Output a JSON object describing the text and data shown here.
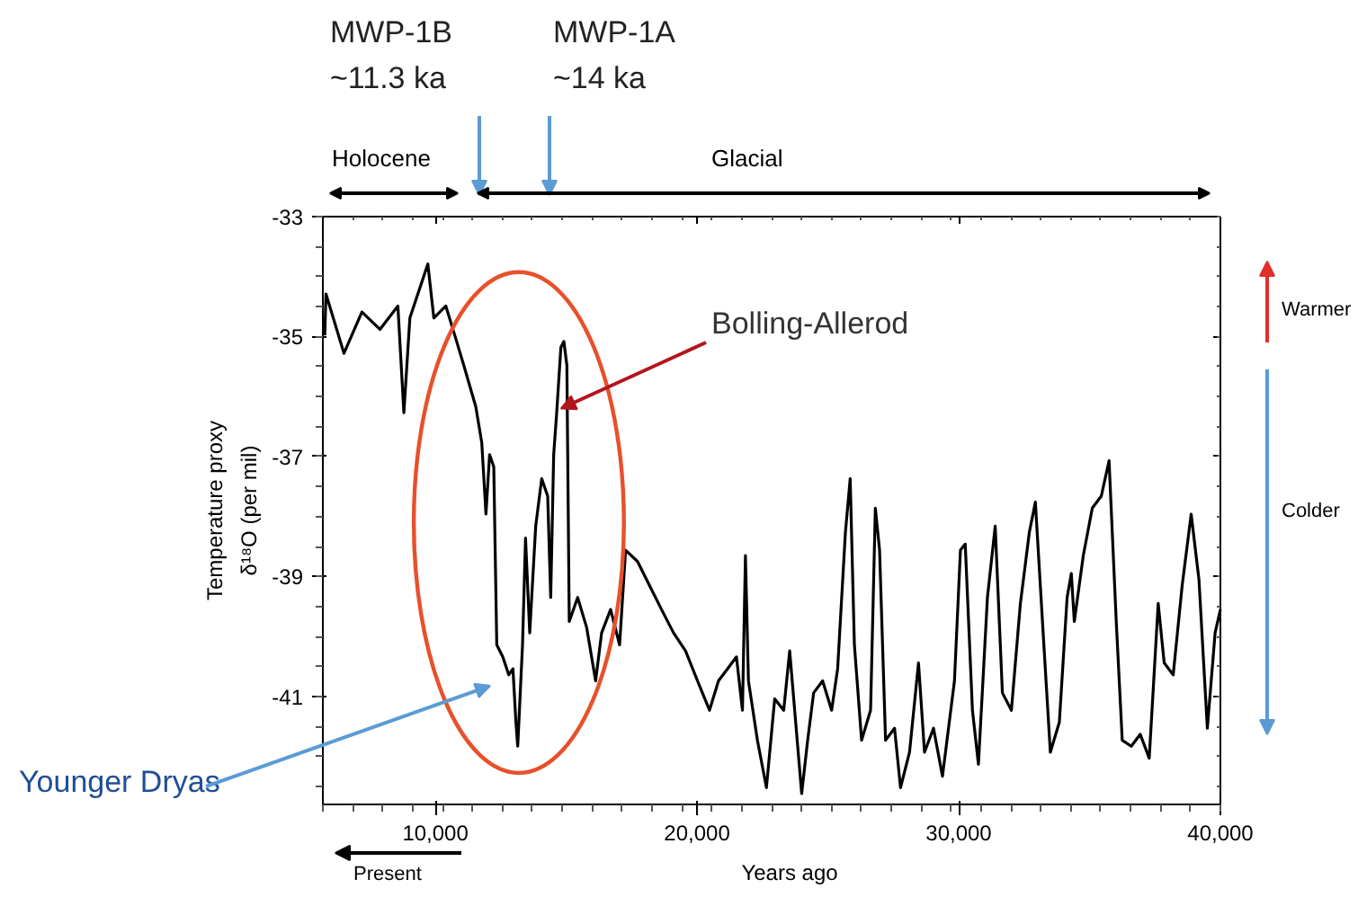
{
  "chart_data": {
    "type": "line",
    "xlabel": "Years ago",
    "ylabel": "Temperature proxy\nδ¹⁸O (per mil)",
    "xlim": [
      5700,
      40000
    ],
    "ylim": [
      -42.8,
      -33
    ],
    "xticks": [
      {
        "value": 10000,
        "label": "10,000"
      },
      {
        "value": 20000,
        "label": "20,000"
      },
      {
        "value": 30000,
        "label": "30,000"
      },
      {
        "value": 40000,
        "label": "40,000"
      }
    ],
    "yticks": [
      -33,
      -35,
      -37,
      -39,
      -41
    ],
    "grid": false,
    "marker": "none",
    "line_style": "solid",
    "annotations": [
      "MWP-1B\n~11.3 ka",
      "MWP-1A\n~14 ka",
      "Holocene",
      "Glacial",
      {
        "text": "Bolling-Allerod",
        "x": 14800,
        "y": -36.2
      },
      "Younger Dryas",
      "Warmer",
      "Colder",
      "Present"
    ],
    "series": [
      {
        "color": "#000000",
        "x": [
          5773,
          5819,
          6506,
          7193,
          7880,
          8567,
          8796,
          9025,
          9712,
          9941,
          10399,
          10743,
          11086,
          11544,
          11773,
          11933,
          12071,
          12231,
          12346,
          12575,
          12804,
          12964,
          13078,
          13147,
          13330,
          13445,
          13605,
          13834,
          14063,
          14292,
          14407,
          14521,
          14636,
          14796,
          14910,
          15025,
          15116,
          15437,
          15781,
          16124,
          16353,
          16697,
          17040,
          17269,
          17727,
          18185,
          18643,
          19101,
          19559,
          20017,
          20475,
          20819,
          21162,
          21506,
          21735,
          21849,
          21964,
          22307,
          22651,
          22967,
          23311,
          23540,
          23769,
          23998,
          24227,
          24456,
          24799,
          25143,
          25372,
          25670,
          25852,
          26013,
          26288,
          26631,
          26814,
          26975,
          27204,
          27547,
          27776,
          28120,
          28463,
          28692,
          29036,
          29379,
          29837,
          30066,
          30249,
          30524,
          30753,
          31097,
          31394,
          31669,
          32013,
          32356,
          32700,
          32929,
          33226,
          33501,
          33845,
          34142,
          34303,
          34417,
          34761,
          35104,
          35448,
          35745,
          36020,
          36249,
          36593,
          36936,
          37280,
          37623,
          37852,
          38196,
          38539,
          38883,
          39180,
          39501,
          39798,
          40000
        ],
        "values": [
          -34.98,
          -34.29,
          -35.28,
          -34.59,
          -34.88,
          -34.49,
          -36.27,
          -34.69,
          -33.79,
          -34.69,
          -34.49,
          -34.98,
          -35.48,
          -36.17,
          -36.77,
          -37.96,
          -36.97,
          -37.17,
          -40.14,
          -40.34,
          -40.64,
          -40.54,
          -41.43,
          -41.83,
          -40.14,
          -38.36,
          -39.94,
          -38.16,
          -37.37,
          -37.66,
          -39.35,
          -36.97,
          -36.27,
          -35.18,
          -35.08,
          -35.48,
          -39.75,
          -39.35,
          -39.85,
          -40.74,
          -39.94,
          -39.55,
          -40.14,
          -38.56,
          -38.75,
          -39.15,
          -39.55,
          -39.94,
          -40.24,
          -40.74,
          -41.23,
          -40.74,
          -40.54,
          -40.34,
          -41.23,
          -38.65,
          -40.74,
          -41.73,
          -42.52,
          -41.04,
          -41.23,
          -40.24,
          -41.43,
          -42.62,
          -41.73,
          -40.94,
          -40.74,
          -41.23,
          -40.54,
          -38.26,
          -37.37,
          -40.14,
          -41.73,
          -41.23,
          -37.86,
          -38.56,
          -41.73,
          -41.53,
          -42.52,
          -41.93,
          -40.44,
          -41.93,
          -41.53,
          -42.33,
          -40.74,
          -38.56,
          -38.46,
          -41.23,
          -42.13,
          -39.35,
          -38.16,
          -40.94,
          -41.23,
          -39.45,
          -38.26,
          -37.76,
          -39.94,
          -41.93,
          -41.43,
          -39.35,
          -38.95,
          -39.75,
          -38.65,
          -37.86,
          -37.66,
          -37.07,
          -39.75,
          -41.73,
          -41.83,
          -41.63,
          -42.03,
          -39.45,
          -40.44,
          -40.64,
          -39.15,
          -37.96,
          -39.05,
          -41.53,
          -39.94,
          -39.55
        ]
      }
    ]
  }
}
